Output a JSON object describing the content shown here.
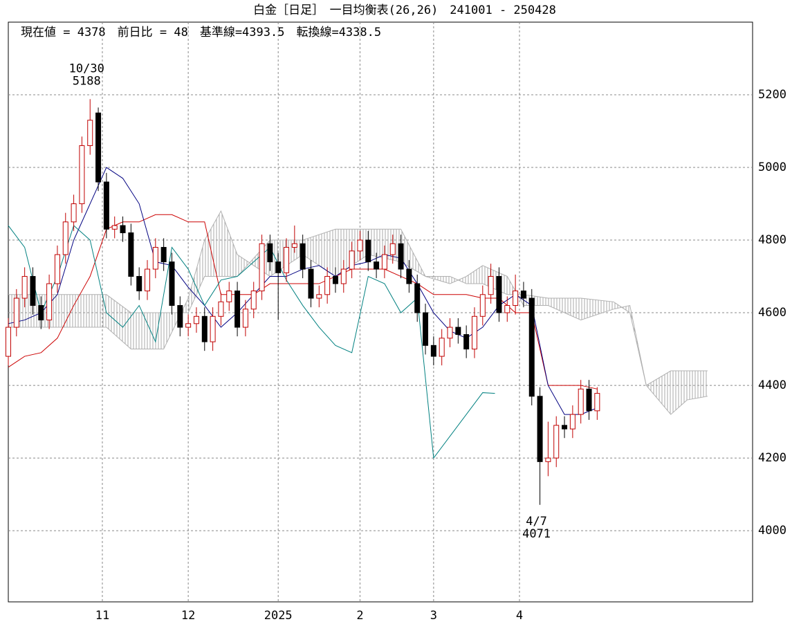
{
  "chart_data": {
    "type": "candlestick",
    "title": "白金［日足］　一目均衡表(26,26)　241001 - 250428",
    "header": "現在値 = 4378　前日比 = 48　基準線=4393.5　転換線=4338.5",
    "xlim": [
      0,
      182
    ],
    "ylim": [
      3804,
      5400
    ],
    "yticks": [
      4000,
      4200,
      4400,
      4600,
      4800,
      5000,
      5200
    ],
    "xticks": [
      {
        "value": 23,
        "label": "11"
      },
      {
        "value": 44,
        "label": "12"
      },
      {
        "value": 66,
        "label": "2025"
      },
      {
        "value": 86,
        "label": "2"
      },
      {
        "value": 104,
        "label": "3"
      },
      {
        "value": 125,
        "label": "4"
      }
    ],
    "grid": true,
    "up_color": "#c00000",
    "down_color": "#000000",
    "x": [
      0,
      2,
      4,
      6,
      8,
      10,
      12,
      14,
      16,
      18,
      20,
      22,
      24,
      26,
      28,
      30,
      32,
      34,
      36,
      38,
      40,
      42,
      44,
      46,
      48,
      50,
      52,
      54,
      56,
      58,
      60,
      62,
      64,
      66,
      68,
      70,
      72,
      74,
      76,
      78,
      80,
      82,
      84,
      86,
      88,
      90,
      92,
      94,
      96,
      98,
      100,
      102,
      104,
      106,
      108,
      110,
      112,
      114,
      116,
      118,
      120,
      122,
      124,
      126,
      128,
      130,
      132,
      134,
      136,
      138,
      140,
      142,
      144
    ],
    "open": [
      4480,
      4560,
      4640,
      4700,
      4620,
      4580,
      4680,
      4760,
      4850,
      4900,
      5060,
      5150,
      4960,
      4830,
      4840,
      4820,
      4700,
      4660,
      4720,
      4780,
      4740,
      4620,
      4560,
      4570,
      4590,
      4520,
      4590,
      4630,
      4660,
      4560,
      4610,
      4660,
      4790,
      4740,
      4710,
      4780,
      4790,
      4720,
      4640,
      4650,
      4700,
      4680,
      4720,
      4770,
      4800,
      4740,
      4720,
      4760,
      4790,
      4720,
      4680,
      4600,
      4510,
      4480,
      4530,
      4560,
      4540,
      4500,
      4590,
      4650,
      4700,
      4600,
      4620,
      4660,
      4640,
      4370,
      4190,
      4200,
      4290,
      4280,
      4320,
      4390,
      4330
    ],
    "high": [
      4585,
      4665,
      4725,
      4725,
      4645,
      4705,
      4785,
      4875,
      4925,
      5085,
      5188,
      5165,
      4985,
      4865,
      4865,
      4845,
      4725,
      4745,
      4805,
      4805,
      4765,
      4645,
      4595,
      4615,
      4615,
      4615,
      4655,
      4685,
      4685,
      4635,
      4685,
      4815,
      4815,
      4765,
      4805,
      4840,
      4815,
      4745,
      4675,
      4725,
      4725,
      4745,
      4795,
      4825,
      4825,
      4765,
      4785,
      4815,
      4815,
      4745,
      4705,
      4625,
      4535,
      4555,
      4585,
      4585,
      4565,
      4615,
      4675,
      4735,
      4725,
      4645,
      4705,
      4685,
      4665,
      4395,
      4300,
      4315,
      4315,
      4345,
      4415,
      4415,
      4395
    ],
    "low": [
      4455,
      4535,
      4615,
      4595,
      4555,
      4555,
      4655,
      4735,
      4825,
      4875,
      5035,
      4935,
      4805,
      4805,
      4795,
      4675,
      4635,
      4635,
      4695,
      4715,
      4595,
      4535,
      4535,
      4545,
      4495,
      4495,
      4565,
      4605,
      4535,
      4535,
      4585,
      4635,
      4715,
      4580,
      4685,
      4765,
      4695,
      4615,
      4615,
      4625,
      4655,
      4655,
      4695,
      4745,
      4715,
      4695,
      4695,
      4735,
      4695,
      4655,
      4575,
      4485,
      4455,
      4455,
      4505,
      4515,
      4475,
      4475,
      4565,
      4625,
      4575,
      4575,
      4595,
      4615,
      4345,
      4071,
      4150,
      4175,
      4255,
      4255,
      4295,
      4305,
      4305
    ],
    "close": [
      4560,
      4640,
      4700,
      4620,
      4580,
      4680,
      4760,
      4850,
      4900,
      5060,
      5130,
      4960,
      4830,
      4840,
      4820,
      4700,
      4660,
      4720,
      4780,
      4740,
      4620,
      4560,
      4570,
      4590,
      4520,
      4590,
      4630,
      4660,
      4560,
      4610,
      4660,
      4790,
      4740,
      4710,
      4780,
      4790,
      4720,
      4640,
      4650,
      4700,
      4680,
      4720,
      4770,
      4800,
      4740,
      4720,
      4760,
      4790,
      4720,
      4680,
      4600,
      4510,
      4480,
      4530,
      4560,
      4540,
      4500,
      4590,
      4650,
      4700,
      4600,
      4620,
      4660,
      4640,
      4370,
      4190,
      4200,
      4290,
      4280,
      4320,
      4390,
      4330,
      4378
    ],
    "cloud": {
      "color": "#b0b0b0",
      "x": [
        0,
        8,
        16,
        24,
        30,
        38,
        44,
        48,
        52,
        56,
        64,
        72,
        80,
        88,
        96,
        102,
        108,
        112,
        116,
        122,
        126,
        132,
        140,
        148,
        152,
        156,
        162,
        166,
        171
      ],
      "span_a": [
        4560,
        4560,
        4560,
        4560,
        4500,
        4500,
        4640,
        4800,
        4880,
        4760,
        4700,
        4760,
        4700,
        4760,
        4740,
        4700,
        4680,
        4700,
        4730,
        4700,
        4620,
        4620,
        4580,
        4610,
        4620,
        4400,
        4320,
        4360,
        4370
      ],
      "span_b": [
        4650,
        4650,
        4650,
        4650,
        4600,
        4600,
        4600,
        4700,
        4700,
        4700,
        4800,
        4800,
        4830,
        4830,
        4830,
        4700,
        4700,
        4680,
        4680,
        4650,
        4650,
        4640,
        4640,
        4630,
        4600,
        4400,
        4440,
        4440,
        4440
      ]
    },
    "lines": [
      {
        "color": "#cc0000",
        "x": [
          0,
          4,
          8,
          12,
          16,
          20,
          24,
          28,
          32,
          36,
          40,
          44,
          48,
          52,
          56,
          60,
          64,
          68,
          72,
          76,
          80,
          84,
          88,
          92,
          96,
          100,
          104,
          108,
          112,
          116,
          120,
          124,
          128,
          132,
          136,
          140,
          144
        ],
        "values": [
          4450,
          4480,
          4490,
          4530,
          4620,
          4700,
          4830,
          4850,
          4850,
          4870,
          4870,
          4850,
          4850,
          4650,
          4650,
          4650,
          4680,
          4680,
          4680,
          4680,
          4700,
          4720,
          4720,
          4720,
          4700,
          4680,
          4650,
          4650,
          4650,
          4640,
          4640,
          4600,
          4600,
          4400,
          4400,
          4400,
          4390
        ]
      },
      {
        "color": "#000080",
        "x": [
          0,
          4,
          8,
          12,
          16,
          20,
          24,
          28,
          32,
          36,
          40,
          44,
          48,
          52,
          56,
          60,
          64,
          68,
          72,
          76,
          80,
          84,
          88,
          92,
          96,
          100,
          104,
          108,
          112,
          116,
          120,
          124,
          128,
          132,
          136,
          140,
          144
        ],
        "values": [
          4570,
          4580,
          4600,
          4650,
          4800,
          4900,
          5000,
          4970,
          4900,
          4740,
          4730,
          4670,
          4620,
          4560,
          4600,
          4650,
          4700,
          4700,
          4720,
          4730,
          4700,
          4730,
          4740,
          4760,
          4750,
          4680,
          4600,
          4550,
          4530,
          4560,
          4620,
          4650,
          4620,
          4400,
          4320,
          4320,
          4338
        ]
      },
      {
        "color": "#008080",
        "x": [
          0,
          4,
          8,
          12,
          16,
          20,
          24,
          28,
          32,
          36,
          40,
          44,
          48,
          52,
          56,
          60,
          64,
          68,
          72,
          76,
          80,
          84,
          88,
          92,
          96,
          100,
          104,
          108,
          112,
          116,
          119
        ],
        "values": [
          4840,
          4780,
          4600,
          4700,
          4840,
          4800,
          4600,
          4560,
          4620,
          4520,
          4780,
          4720,
          4620,
          4690,
          4700,
          4740,
          4780,
          4690,
          4620,
          4560,
          4510,
          4490,
          4700,
          4680,
          4600,
          4640,
          4200,
          4260,
          4320,
          4380,
          4378
        ]
      }
    ],
    "annotations": [
      {
        "label": "10/30",
        "value": 5188
      },
      {
        "label": "4/7",
        "value": 4071
      }
    ]
  }
}
